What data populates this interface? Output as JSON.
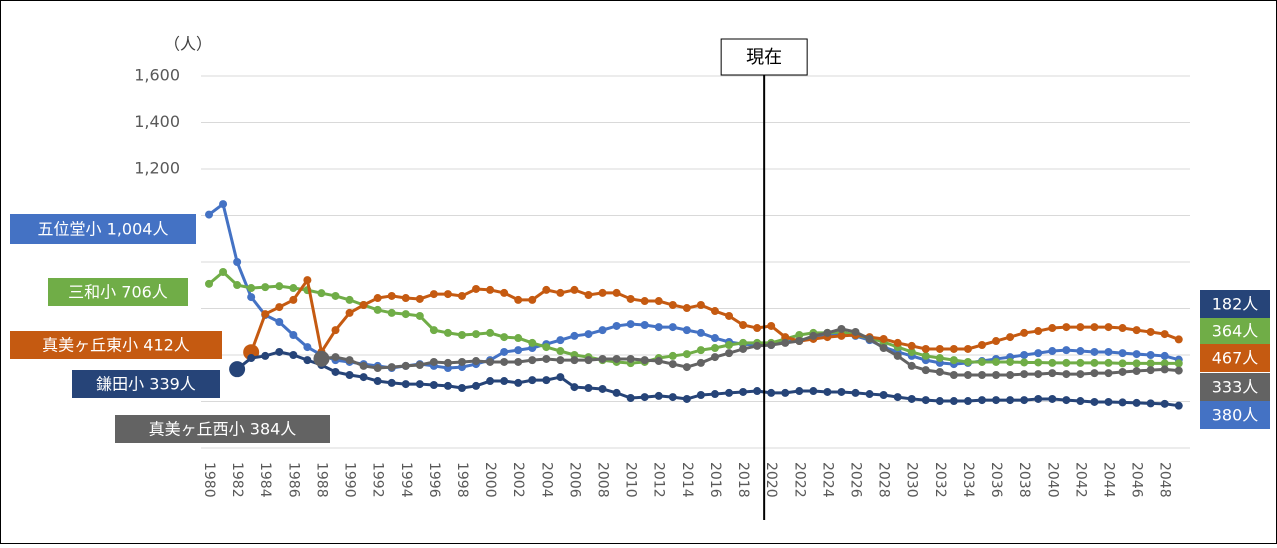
{
  "chart_data": {
    "type": "line",
    "y_unit_label": "（人）",
    "x": [
      1980,
      1981,
      1982,
      1983,
      1984,
      1985,
      1986,
      1987,
      1988,
      1989,
      1990,
      1991,
      1992,
      1993,
      1994,
      1995,
      1996,
      1997,
      1998,
      1999,
      2000,
      2001,
      2002,
      2003,
      2004,
      2005,
      2006,
      2007,
      2008,
      2009,
      2010,
      2011,
      2012,
      2013,
      2014,
      2015,
      2016,
      2017,
      2018,
      2019,
      2020,
      2021,
      2022,
      2023,
      2024,
      2025,
      2026,
      2027,
      2028,
      2029,
      2030,
      2031,
      2032,
      2033,
      2034,
      2035,
      2036,
      2037,
      2038,
      2039,
      2040,
      2041,
      2042,
      2043,
      2044,
      2045,
      2046,
      2047,
      2048,
      2049
    ],
    "xlim": [
      1979.43,
      2049.8
    ],
    "xticks": [
      1980,
      1982,
      1984,
      1986,
      1988,
      1990,
      1992,
      1994,
      1996,
      1998,
      2000,
      2002,
      2004,
      2006,
      2008,
      2010,
      2012,
      2014,
      2016,
      2018,
      2020,
      2022,
      2024,
      2026,
      2028,
      2030,
      2032,
      2034,
      2036,
      2038,
      2040,
      2042,
      2044,
      2046,
      2048
    ],
    "ylim": [
      0,
      1800
    ],
    "yticks": [
      {
        "value": 1200,
        "label": "1,200"
      },
      {
        "value": 1400,
        "label": "1,400"
      },
      {
        "value": 1600,
        "label": "1,600"
      }
    ],
    "grid_values": [
      0,
      200,
      400,
      600,
      800,
      1000,
      1200,
      1400,
      1600
    ],
    "grid": true,
    "annotation": {
      "text": "現在",
      "x": 2019.5
    },
    "series": [
      {
        "start_label": "五位堂小 1,004人",
        "end_label": "380人",
        "color": "#4472c4",
        "values": [
          1004,
          1049,
          800,
          649,
          572,
          542,
          486,
          434,
          400,
          378,
          370,
          361,
          353,
          344,
          353,
          361,
          353,
          344,
          348,
          361,
          378,
          413,
          421,
          430,
          447,
          464,
          482,
          490,
          507,
          525,
          533,
          529,
          520,
          520,
          507,
          495,
          473,
          456,
          447,
          443,
          443,
          456,
          464,
          473,
          486,
          490,
          482,
          464,
          434,
          413,
          396,
          378,
          366,
          361,
          366,
          374,
          383,
          391,
          400,
          408,
          417,
          421,
          417,
          413,
          413,
          408,
          404,
          400,
          396,
          380
        ]
      },
      {
        "start_label": "三和小 706人",
        "end_label": "364人",
        "color": "#70ad47",
        "values": [
          706,
          757,
          701,
          688,
          692,
          696,
          688,
          679,
          666,
          654,
          637,
          615,
          594,
          581,
          576,
          568,
          507,
          495,
          486,
          490,
          495,
          477,
          473,
          452,
          434,
          417,
          400,
          391,
          378,
          370,
          365,
          370,
          387,
          396,
          404,
          421,
          430,
          443,
          452,
          452,
          452,
          469,
          486,
          495,
          495,
          499,
          486,
          473,
          456,
          434,
          413,
          396,
          387,
          378,
          370,
          370,
          370,
          370,
          368,
          368,
          366,
          366,
          366,
          366,
          366,
          364,
          364,
          364,
          364,
          364
        ]
      },
      {
        "start_label": "真美ヶ丘東小 412人",
        "end_label": "467人",
        "color": "#c55a11",
        "values": [
          null,
          null,
          null,
          412,
          576,
          606,
          637,
          722,
          413,
          507,
          581,
          615,
          645,
          654,
          645,
          641,
          662,
          662,
          654,
          684,
          680,
          667,
          637,
          637,
          680,
          667,
          680,
          658,
          667,
          667,
          641,
          632,
          632,
          615,
          602,
          615,
          589,
          568,
          529,
          516,
          525,
          477,
          460,
          469,
          477,
          482,
          486,
          477,
          469,
          452,
          439,
          426,
          426,
          426,
          426,
          443,
          460,
          477,
          495,
          503,
          516,
          520,
          520,
          520,
          520,
          516,
          507,
          499,
          490,
          467
        ]
      },
      {
        "start_label": "鎌田小 339人",
        "end_label": "182人",
        "color": "#264478",
        "values": [
          null,
          null,
          339,
          387,
          396,
          413,
          400,
          378,
          357,
          327,
          314,
          305,
          288,
          280,
          275,
          275,
          271,
          267,
          258,
          267,
          288,
          288,
          280,
          292,
          292,
          305,
          262,
          258,
          254,
          237,
          215,
          219,
          224,
          219,
          211,
          228,
          232,
          237,
          241,
          245,
          237,
          237,
          245,
          245,
          241,
          241,
          237,
          232,
          228,
          219,
          211,
          206,
          202,
          202,
          202,
          206,
          206,
          206,
          206,
          211,
          211,
          206,
          202,
          198,
          198,
          196,
          194,
          192,
          190,
          182
        ]
      },
      {
        "start_label": "真美ヶ丘西小 384人",
        "end_label": "333人",
        "color": "#636363",
        "values": [
          null,
          null,
          null,
          null,
          null,
          null,
          null,
          null,
          384,
          391,
          378,
          353,
          344,
          348,
          353,
          357,
          370,
          366,
          370,
          374,
          370,
          370,
          370,
          378,
          383,
          378,
          378,
          378,
          383,
          383,
          383,
          378,
          374,
          361,
          348,
          366,
          391,
          408,
          426,
          439,
          443,
          452,
          460,
          482,
          495,
          512,
          499,
          469,
          430,
          396,
          353,
          335,
          327,
          314,
          314,
          314,
          314,
          314,
          318,
          318,
          322,
          318,
          318,
          322,
          322,
          327,
          331,
          335,
          338,
          333
        ]
      }
    ]
  }
}
